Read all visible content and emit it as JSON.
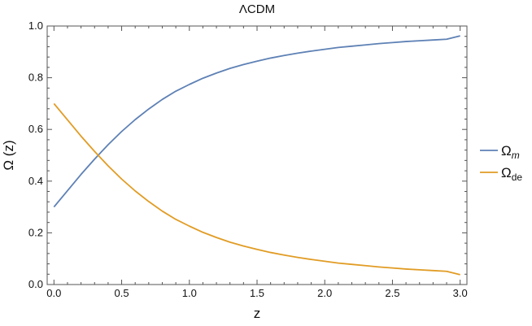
{
  "chart_data": {
    "type": "line",
    "title": "ΛCDM",
    "xlabel": "z",
    "ylabel": "Ω (z)",
    "xlim": [
      -0.05,
      3.05
    ],
    "ylim": [
      0,
      1
    ],
    "xticks": [
      0,
      0.5,
      1,
      1.5,
      2,
      2.5,
      3
    ],
    "xtick_labels": [
      "0.0",
      "0.5",
      "1.0",
      "1.5",
      "2.0",
      "2.5",
      "3.0"
    ],
    "yticks": [
      0,
      0.2,
      0.4,
      0.6,
      0.8,
      1
    ],
    "ytick_labels": [
      "0.0",
      "0.2",
      "0.4",
      "0.6",
      "0.8",
      "1.0"
    ],
    "grid": false,
    "legend_position": "right",
    "x": [
      0,
      0.1,
      0.2,
      0.3,
      0.4,
      0.5,
      0.6,
      0.7,
      0.8,
      0.9,
      1.0,
      1.1,
      1.2,
      1.3,
      1.4,
      1.5,
      1.6,
      1.7,
      1.8,
      1.9,
      2.0,
      2.1,
      2.2,
      2.3,
      2.4,
      2.5,
      2.6,
      2.7,
      2.8,
      2.9,
      3.0
    ],
    "series": [
      {
        "name": "Ω",
        "name_sub": "m",
        "color": "#5e81b5",
        "values": [
          0.3,
          0.363,
          0.426,
          0.485,
          0.541,
          0.592,
          0.638,
          0.679,
          0.716,
          0.748,
          0.774,
          0.798,
          0.818,
          0.836,
          0.851,
          0.864,
          0.876,
          0.886,
          0.895,
          0.903,
          0.91,
          0.917,
          0.922,
          0.927,
          0.932,
          0.936,
          0.94,
          0.943,
          0.946,
          0.949,
          0.962
        ]
      },
      {
        "name": "Ω",
        "name_sub": "de",
        "color": "#e19c24",
        "values": [
          0.7,
          0.637,
          0.574,
          0.515,
          0.459,
          0.408,
          0.362,
          0.321,
          0.284,
          0.252,
          0.226,
          0.202,
          0.182,
          0.164,
          0.149,
          0.136,
          0.124,
          0.114,
          0.105,
          0.097,
          0.09,
          0.083,
          0.078,
          0.073,
          0.068,
          0.064,
          0.06,
          0.057,
          0.054,
          0.051,
          0.038
        ]
      }
    ]
  }
}
